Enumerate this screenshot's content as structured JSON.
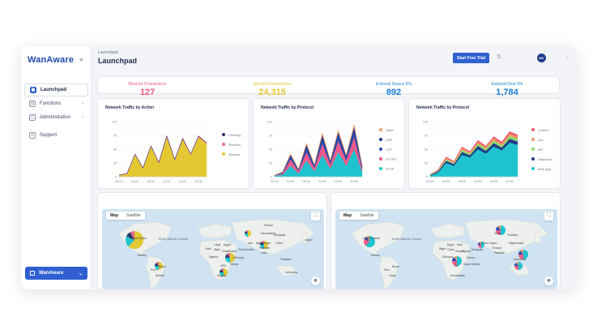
{
  "sidebar": {
    "logo": "WanAware",
    "collapse_glyph": "«",
    "items": [
      {
        "label": "Launchpad",
        "glyph": "▣",
        "active": true
      },
      {
        "label": "Functions",
        "glyph": "▤",
        "chevron": "›"
      },
      {
        "label": "Administration",
        "glyph": "◫",
        "chevron": "›"
      },
      {
        "label": "Support",
        "glyph": "✉"
      }
    ],
    "org_switcher": {
      "label": "WanAware",
      "chevron": "⌄"
    }
  },
  "header": {
    "breadcrumb": "Launchpad",
    "title": "Launchpad",
    "cta_label": "Start Free Trial",
    "settings_glyph": "⇅",
    "avatar_initials": "WV",
    "avatar_chevron": "⌄"
  },
  "stats": [
    {
      "label": "Blocked Connections",
      "value": "127",
      "color": "#f2567a"
    },
    {
      "label": "Allowed Connections",
      "value": "24,315",
      "color": "#e3c832"
    },
    {
      "label": "External Source IPs",
      "value": "892",
      "color": "#1a7fd6"
    },
    {
      "label": "External Dest IPs",
      "value": "1,784",
      "color": "#1a7fd6"
    }
  ],
  "charts": {
    "action": {
      "title": "Network Traffic by Action",
      "legend": [
        {
          "name": "Pending",
          "color": "#2b3a6b"
        },
        {
          "name": "Blocked",
          "color": "#e66b8c"
        },
        {
          "name": "Allowed",
          "color": "#e3c832"
        }
      ]
    },
    "protocol": {
      "title": "Network Traffic by Protocol",
      "legend": [
        {
          "name": "Other",
          "color": "#f29b63"
        },
        {
          "name": "UDP",
          "color": "#1f3a8a"
        },
        {
          "name": "TCP",
          "color": "#2a4db5"
        },
        {
          "name": "HTTPS",
          "color": "#ef5b8a"
        },
        {
          "name": "HTTP",
          "color": "#1fc3d0"
        }
      ]
    },
    "protocol_app": {
      "title": "Network Traffic by Protocol",
      "legend": [
        {
          "name": "Custom",
          "color": "#ef5b6e"
        },
        {
          "name": "Icon",
          "color": "#f29b63"
        },
        {
          "name": "API",
          "color": "#8fd86e"
        },
        {
          "name": "Database",
          "color": "#1f3a8a"
        },
        {
          "name": "Web App",
          "color": "#1fc3d0"
        }
      ]
    }
  },
  "chart_data": [
    {
      "type": "area",
      "title": "Network Traffic by Action",
      "x": [
        "00:00",
        "02:00",
        "04:00",
        "06:00",
        "08:00",
        "10:00",
        "12:00",
        "14:00",
        "16:00",
        "18:00",
        "20:00",
        "22:00"
      ],
      "ylim": [
        0,
        100
      ],
      "yticks": [
        0,
        25,
        50,
        75,
        100
      ],
      "xticks": [
        "00:00",
        "04:00",
        "08:00",
        "12:00",
        "16:00",
        "20:00"
      ],
      "series": [
        {
          "name": "Allowed",
          "values": [
            3,
            5,
            40,
            15,
            55,
            25,
            72,
            30,
            68,
            40,
            72,
            60
          ]
        },
        {
          "name": "Blocked",
          "values": [
            0,
            1,
            1,
            1,
            1,
            1,
            2,
            1,
            2,
            1,
            2,
            2
          ]
        },
        {
          "name": "Pending",
          "values": [
            0,
            0,
            0,
            0,
            0,
            0,
            0,
            0,
            0,
            0,
            0,
            0
          ]
        }
      ]
    },
    {
      "type": "area",
      "title": "Network Traffic by Protocol",
      "x": [
        "00:00",
        "02:00",
        "04:00",
        "06:00",
        "08:00",
        "10:00",
        "12:00",
        "14:00",
        "16:00",
        "18:00",
        "20:00",
        "22:00"
      ],
      "ylim": [
        0,
        100
      ],
      "yticks": [
        0,
        25,
        50,
        75,
        100
      ],
      "xticks": [
        "00:00",
        "04:00",
        "08:00",
        "12:00",
        "16:00",
        "20:00"
      ],
      "series": [
        {
          "name": "HTTP",
          "values": [
            2,
            4,
            20,
            6,
            30,
            10,
            40,
            15,
            45,
            20,
            50,
            10
          ]
        },
        {
          "name": "HTTPS",
          "values": [
            1,
            2,
            12,
            4,
            15,
            6,
            20,
            8,
            20,
            10,
            22,
            5
          ]
        },
        {
          "name": "TCP",
          "values": [
            0,
            1,
            5,
            2,
            8,
            3,
            10,
            4,
            10,
            5,
            12,
            3
          ]
        },
        {
          "name": "UDP",
          "values": [
            0,
            1,
            3,
            1,
            5,
            2,
            6,
            2,
            6,
            3,
            7,
            2
          ]
        },
        {
          "name": "Other",
          "values": [
            0,
            1,
            2,
            1,
            3,
            1,
            3,
            1,
            3,
            2,
            4,
            1
          ]
        }
      ]
    },
    {
      "type": "area",
      "title": "Network Traffic by Protocol",
      "x": [
        "00:00",
        "02:00",
        "04:00",
        "06:00",
        "08:00",
        "10:00",
        "12:00",
        "14:00",
        "16:00",
        "18:00",
        "20:00",
        "22:00"
      ],
      "ylim": [
        0,
        100
      ],
      "yticks": [
        0,
        25,
        50,
        75,
        100
      ],
      "xticks": [
        "00:00",
        "04:00",
        "08:00",
        "12:00",
        "16:00",
        "20:00"
      ],
      "series": [
        {
          "name": "Web App",
          "values": [
            2,
            8,
            25,
            20,
            40,
            35,
            50,
            42,
            55,
            48,
            62,
            58
          ]
        },
        {
          "name": "Database",
          "values": [
            1,
            2,
            4,
            3,
            5,
            4,
            6,
            5,
            6,
            5,
            7,
            6
          ]
        },
        {
          "name": "API",
          "values": [
            1,
            1,
            3,
            2,
            4,
            3,
            4,
            4,
            5,
            4,
            5,
            5
          ]
        },
        {
          "name": "Icon",
          "values": [
            0,
            1,
            2,
            2,
            3,
            2,
            3,
            3,
            4,
            3,
            4,
            4
          ]
        },
        {
          "name": "Custom",
          "values": [
            0,
            1,
            2,
            1,
            2,
            2,
            3,
            2,
            3,
            3,
            4,
            3
          ]
        }
      ]
    }
  ],
  "maps": [
    {
      "tabs": [
        "Map",
        "Satellite"
      ],
      "ocean_label": "North Atlantic Ocean",
      "country_labels": [
        "United States",
        "Mexico",
        "Peru",
        "Brazil",
        "Bolivia",
        "Libya",
        "Egypt",
        "Mali",
        "Niger",
        "Chad",
        "Sudan",
        "Nigeria",
        "Ethiopia",
        "Kenya",
        "DRC",
        "Angola",
        "Saudi Arabia",
        "Iran",
        "Kazakhstan",
        "Mongolia",
        "China",
        "India",
        "Thailand",
        "Afghanistan",
        "Pakistan",
        "Indonesia",
        "Japan",
        "Russia"
      ],
      "pie_colors": [
        "#e3c832",
        "#1fc3d0",
        "#2b3a6b",
        "#e66b8c"
      ]
    },
    {
      "tabs": [
        "Map",
        "Satellite"
      ],
      "ocean_label": "North Atlantic Ocean",
      "country_labels": [
        "United States",
        "Mexico",
        "Peru",
        "Brazil",
        "Libya",
        "Egypt",
        "Mali",
        "Niger",
        "Chad",
        "Sudan",
        "Nigeria",
        "Ethiopia",
        "Kenya",
        "Saudi Arabia",
        "Iran",
        "Kazakhstan",
        "Mongolia",
        "China",
        "India",
        "Thailand",
        "Afghanistan",
        "Pakistan",
        "Indonesia",
        "Japan",
        "Russia"
      ],
      "pie_colors": [
        "#1fc3d0",
        "#ef5b8a",
        "#2a4db5",
        "#f29b63"
      ]
    }
  ],
  "map_controls": {
    "fullscreen_glyph": "⛶",
    "pan_glyph": "✥"
  }
}
